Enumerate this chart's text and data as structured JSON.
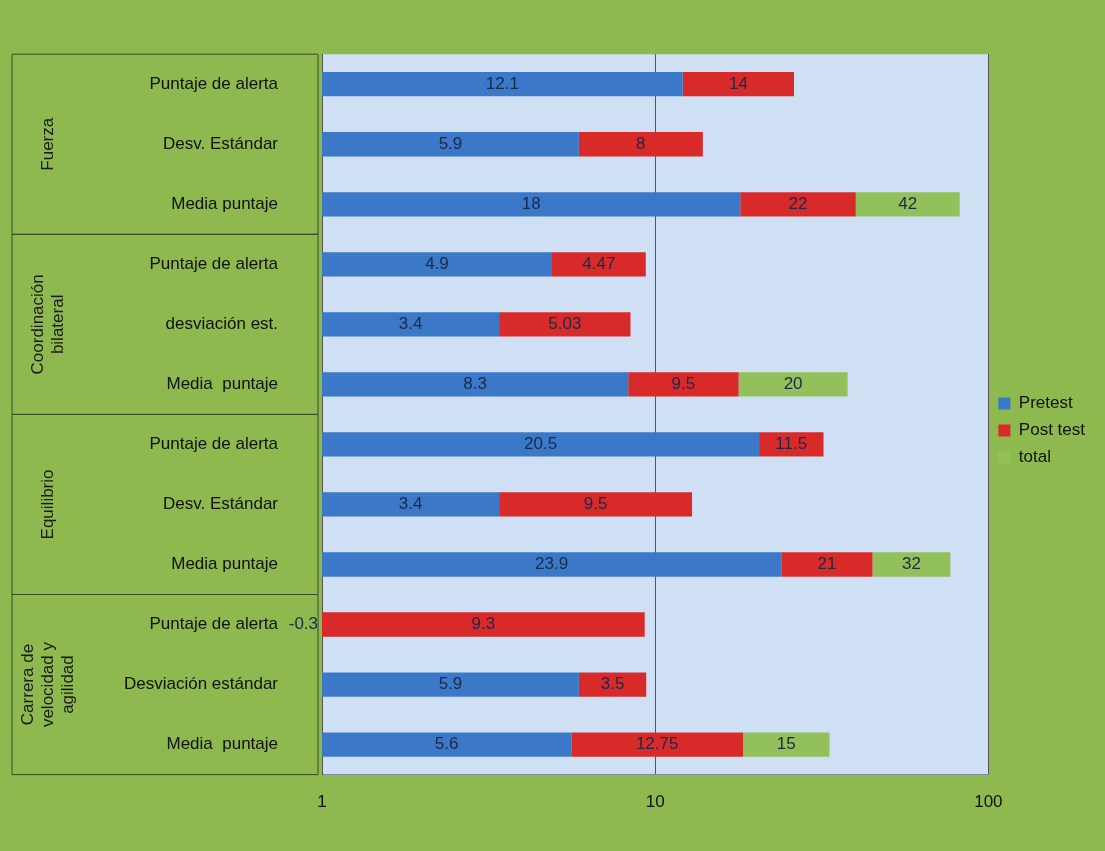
{
  "chart_data": {
    "type": "bar",
    "orientation": "horizontal",
    "stacked": true,
    "log": "x",
    "categories": [
      "Puntaje de alerta",
      "Desv. Estándar",
      "Media puntaje",
      "Puntaje de alerta",
      "desviación est.",
      "Media  puntaje",
      "Puntaje de alerta",
      "Desv. Estándar",
      "Media puntaje",
      "Puntaje de alerta",
      "Desviación estándar",
      "Media  puntaje"
    ],
    "series": [
      {
        "name": "Pretest",
        "color": "#3c78c8",
        "values": [
          12.1,
          5.9,
          18,
          4.9,
          3.4,
          8.3,
          20.5,
          3.4,
          23.9,
          null,
          5.9,
          5.6
        ],
        "value_labels": [
          "12.1",
          "5.9",
          "18",
          "4.9",
          "3.4",
          "8.3",
          "20.5",
          "3.4",
          "23.9",
          "-0.3",
          "5.9",
          "5.6"
        ]
      },
      {
        "name": "Post test",
        "color": "#d92a2a",
        "values": [
          14,
          8,
          22,
          4.47,
          5.03,
          9.5,
          11.5,
          9.5,
          21,
          9.3,
          3.5,
          12.75
        ],
        "value_labels": [
          "14",
          "8",
          "22",
          "4.47",
          "5.03",
          "9.5",
          "11.5",
          "9.5",
          "21",
          "9.3",
          "3.5",
          "12.75"
        ]
      },
      {
        "name": "total",
        "color": "#92c05a",
        "values": [
          null,
          null,
          42,
          null,
          null,
          20,
          null,
          null,
          32,
          null,
          null,
          15
        ],
        "value_labels": [
          null,
          null,
          "42",
          null,
          null,
          "20",
          null,
          null,
          "32",
          null,
          null,
          "15"
        ]
      }
    ],
    "xlim": [
      1,
      100
    ],
    "xticks": [
      1,
      10,
      100
    ],
    "grid": "x",
    "legend": "right",
    "annotations": [
      "Fuerza",
      "Coordinación bilateral",
      "Equilibrio",
      "Carrera de velocidad y agilidad"
    ]
  }
}
